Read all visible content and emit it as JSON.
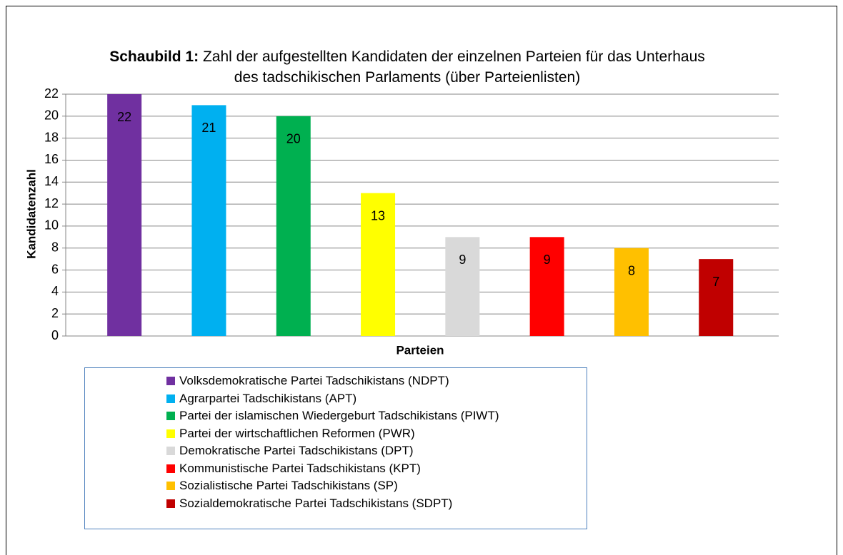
{
  "chart_data": {
    "type": "bar",
    "title_label": "Schaubild 1:",
    "title": "Zahl der aufgestellten Kandidaten der einzelnen Parteien für das Unterhaus des tadschikischen Parlaments (über Parteienlisten)",
    "xlabel": "Parteien",
    "ylabel": "Kandidatenzahl",
    "categories": [
      "Volksdemokratische Partei Tadschikistans (NDPT)",
      "Agrarpartei Tadschikistans (APT)",
      "Partei der islamischen Wiedergeburt Tadschikistans (PIWT)",
      "Partei der wirtschaftlichen Reformen (PWR)",
      "Demokratische Partei Tadschikistans (DPT)",
      "Kommunistische Partei Tadschikistans (KPT)",
      "Sozialistische Partei Tadschikistans (SP)",
      "Sozialdemokratische Partei Tadschikistans (SDPT)"
    ],
    "values": [
      22,
      21,
      20,
      13,
      9,
      9,
      8,
      7
    ],
    "colors": [
      "#7030a0",
      "#00b0f0",
      "#00b050",
      "#ffff00",
      "#d9d9d9",
      "#ff0000",
      "#ffc000",
      "#c00000"
    ],
    "ylim": [
      0,
      22
    ],
    "yticks": [
      0,
      2,
      4,
      6,
      8,
      10,
      12,
      14,
      16,
      18,
      20,
      22
    ],
    "grid": true,
    "legend": "bottom"
  }
}
